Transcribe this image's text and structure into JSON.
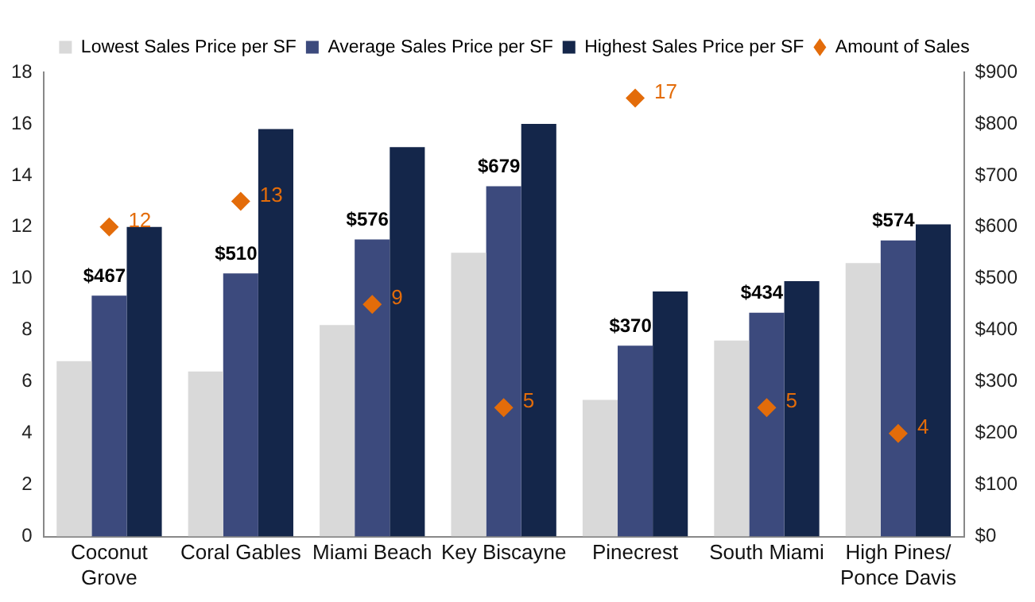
{
  "chart_data": {
    "type": "bar",
    "legend": "top",
    "grid": false,
    "categories": [
      "Coconut Grove",
      "Coral Gables",
      "Miami Beach",
      "Key Biscayne",
      "Pinecrest",
      "South Miami",
      "High Pines/ Ponce Davis"
    ],
    "series": [
      {
        "name": "Lowest Sales Price per SF",
        "color": "#d9d9d9",
        "axis": "y2",
        "values": [
          340,
          320,
          410,
          550,
          265,
          380,
          530
        ]
      },
      {
        "name": "Average Sales Price per SF",
        "color": "#3c4a7d",
        "axis": "y2",
        "values": [
          467,
          510,
          576,
          679,
          370,
          434,
          574
        ],
        "value_labels": [
          "$467",
          "$510",
          "$576",
          "$679",
          "$370",
          "$434",
          "$574"
        ]
      },
      {
        "name": "Highest Sales Price per SF",
        "color": "#14264a",
        "axis": "y2",
        "values": [
          600,
          790,
          755,
          800,
          475,
          495,
          605
        ]
      },
      {
        "name": "Amount of Sales",
        "type": "scatter",
        "marker": "diamond",
        "color": "#e36c0a",
        "axis": "y",
        "x": [
          "Coconut Grove",
          "Coral Gables",
          "Miami Beach",
          "Key Biscayne",
          "Pinecrest",
          "South Miami",
          "High Pines/ Ponce Davis"
        ],
        "values": [
          12,
          13,
          9,
          5,
          17,
          5,
          4
        ],
        "value_labels": [
          "12",
          "13",
          "9",
          "5",
          "17",
          "5",
          "4"
        ]
      }
    ],
    "ylim": [
      0,
      18
    ],
    "yticks": [
      0,
      2,
      4,
      6,
      8,
      10,
      12,
      14,
      16,
      18
    ],
    "y2lim": [
      0,
      900
    ],
    "y2ticks": [
      {
        "value": 0,
        "label": "$0"
      },
      {
        "value": 100,
        "label": "$100"
      },
      {
        "value": 200,
        "label": "$200"
      },
      {
        "value": 300,
        "label": "$300"
      },
      {
        "value": 400,
        "label": "$400"
      },
      {
        "value": 500,
        "label": "$500"
      },
      {
        "value": 600,
        "label": "$600"
      },
      {
        "value": 700,
        "label": "$700"
      },
      {
        "value": 800,
        "label": "$800"
      },
      {
        "value": 900,
        "label": "$900"
      }
    ]
  }
}
